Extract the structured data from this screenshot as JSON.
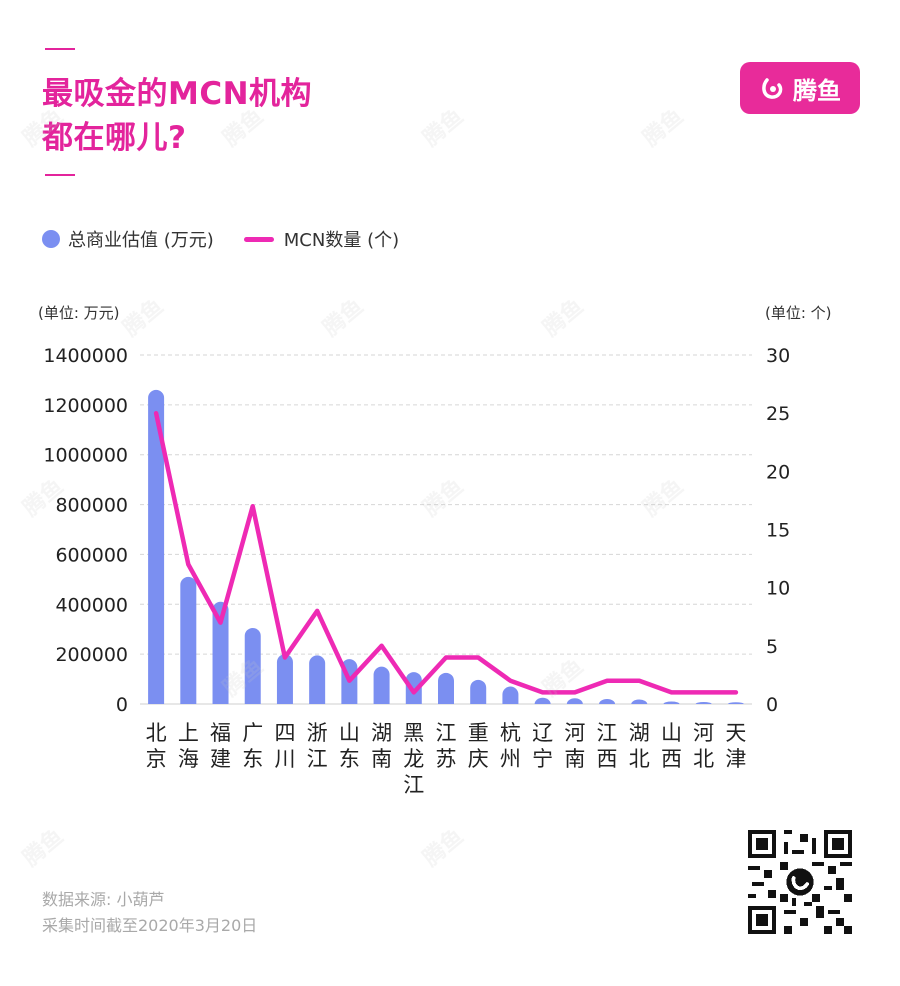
{
  "title": {
    "line1": "最吸金的MCN机构",
    "line2": "都在哪儿?"
  },
  "logo": {
    "text": "腾鱼",
    "icon": "fish-logo-icon"
  },
  "legend": {
    "bar": "总商业估值 (万元)",
    "line": "MCN数量 (个)"
  },
  "units": {
    "left": "(单位: 万元)",
    "right": "(单位: 个)"
  },
  "source": {
    "line1": "数据来源: 小葫芦",
    "line2": "采集时间截至2020年3月20日"
  },
  "colors": {
    "accent": "#e3249c",
    "bar": "#7b8ff1",
    "line": "#ee2ab4"
  },
  "chart_data": {
    "type": "bar",
    "categories": [
      "北京",
      "上海",
      "福建",
      "广东",
      "四川",
      "浙江",
      "山东",
      "湖南",
      "黑龙江",
      "江苏",
      "重庆",
      "杭州",
      "辽宁",
      "河南",
      "江西",
      "湖北",
      "山西",
      "河北",
      "天津"
    ],
    "category_lines": [
      [
        "北",
        "京"
      ],
      [
        "上",
        "海"
      ],
      [
        "福",
        "建"
      ],
      [
        "广",
        "东"
      ],
      [
        "四",
        "川"
      ],
      [
        "浙",
        "江"
      ],
      [
        "山",
        "东"
      ],
      [
        "湖",
        "南"
      ],
      [
        "黑",
        "龙",
        "江"
      ],
      [
        "江",
        "苏"
      ],
      [
        "重",
        "庆"
      ],
      [
        "杭",
        "州"
      ],
      [
        "辽",
        "宁"
      ],
      [
        "河",
        "南"
      ],
      [
        "江",
        "西"
      ],
      [
        "湖",
        "北"
      ],
      [
        "山",
        "西"
      ],
      [
        "河",
        "北"
      ],
      [
        "天",
        "津"
      ]
    ],
    "series": [
      {
        "name": "总商业估值 (万元)",
        "type": "bar",
        "axis": "left",
        "values": [
          1260000,
          510000,
          410000,
          305000,
          200000,
          195000,
          180000,
          150000,
          128000,
          125000,
          97000,
          70000,
          25000,
          23000,
          20000,
          18000,
          10000,
          8000,
          7000
        ]
      },
      {
        "name": "MCN数量 (个)",
        "type": "line",
        "axis": "right",
        "values": [
          25,
          12,
          7,
          17,
          4,
          8,
          2,
          5,
          1,
          4,
          4,
          2,
          1,
          1,
          2,
          2,
          1,
          1,
          1
        ]
      }
    ],
    "y_left": {
      "min": 0,
      "max": 1400000,
      "ticks": [
        0,
        200000,
        400000,
        600000,
        800000,
        1000000,
        1200000,
        1400000
      ]
    },
    "y_right": {
      "min": 0,
      "max": 30,
      "ticks": [
        0,
        5,
        10,
        15,
        20,
        25,
        30
      ]
    },
    "grid": true,
    "legend_position": "top-left"
  }
}
